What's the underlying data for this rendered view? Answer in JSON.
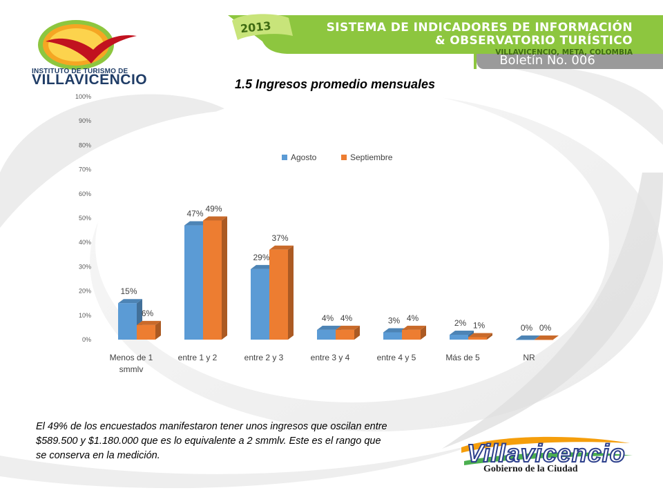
{
  "header": {
    "year": "2013",
    "line1": "SISTEMA DE INDICADORES DE INFORMACIÓN",
    "line2": "& OBSERVATORIO TURÍSTICO",
    "line3": "VILLAVICENCIO, META, COLOMBIA",
    "boletin": "Boletín No. 006"
  },
  "logo": {
    "line1": "INSTITUTO DE TURISMO DE",
    "line2": "VILLAVICENCIO"
  },
  "footer_logo": {
    "word": "Villavicencio",
    "sub": "Gobierno de la Ciudad"
  },
  "colors": {
    "green": "#8dc63f",
    "gray": "#9a9a9a",
    "agosto": "#5b9bd5",
    "septiembre": "#ed7d31"
  },
  "chart_data": {
    "type": "bar",
    "title": "1.5 Ingresos promedio mensuales",
    "categories": [
      "Menos de 1 smmlv",
      "entre 1 y 2",
      "entre 2 y 3",
      "entre 3 y 4",
      "entre 4 y 5",
      "Más de 5",
      "NR"
    ],
    "series": [
      {
        "name": "Agosto",
        "values": [
          15,
          47,
          29,
          4,
          3,
          2,
          0
        ],
        "labels": [
          "15%",
          "47%",
          "29%",
          "4%",
          "3%",
          "2%",
          "0%"
        ]
      },
      {
        "name": "Septiembre",
        "values": [
          6,
          49,
          37,
          4,
          4,
          1,
          0
        ],
        "labels": [
          "6%",
          "49%",
          "37%",
          "4%",
          "4%",
          "1%",
          "0%"
        ]
      }
    ],
    "yticks": [
      "0%",
      "10%",
      "20%",
      "30%",
      "40%",
      "50%",
      "60%",
      "70%",
      "80%",
      "90%",
      "100%"
    ],
    "ylim": [
      0,
      100
    ],
    "legend": "top-center",
    "grid": false
  },
  "body_text": "El 49% de los encuestados manifestaron tener unos ingresos que oscilan entre $589.500 y $1.180.000 que es lo equivalente a 2 smmlv. Este es el rango que se conserva en la medición."
}
